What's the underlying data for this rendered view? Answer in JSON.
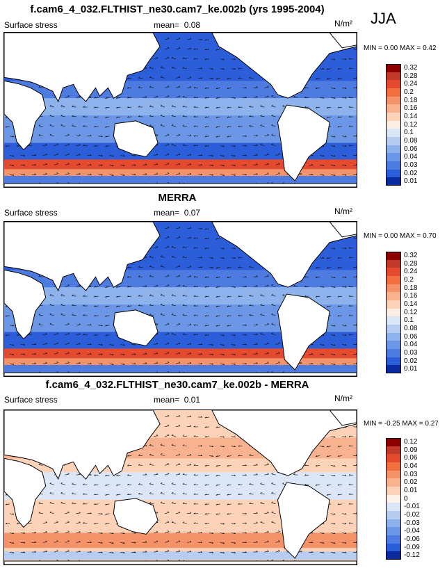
{
  "season_label": "JJA",
  "panels": [
    {
      "title": "f.cam6_4_032.FLTHIST_ne30.cam7_ke.002b (yrs 1995-2004)",
      "variable": "Surface stress",
      "mean_label": "mean=",
      "mean": "0.08",
      "unit": "N/m²",
      "min_label": "MIN =",
      "min": "0.00",
      "max_label": "MAX =",
      "max": "0.42",
      "palette": "sequential",
      "colorbar": [
        "0.32",
        "0.28",
        "0.24",
        "0.2",
        "0.18",
        "0.16",
        "0.14",
        "0.12",
        "0.1",
        "0.08",
        "0.06",
        "0.04",
        "0.03",
        "0.02",
        "0.01"
      ]
    },
    {
      "title": "MERRA",
      "variable": "Surface stress",
      "mean_label": "mean=",
      "mean": "0.07",
      "unit": "N/m²",
      "min_label": "MIN =",
      "min": "0.00",
      "max_label": "MAX =",
      "max": "0.70",
      "palette": "sequential",
      "colorbar": [
        "0.32",
        "0.28",
        "0.24",
        "0.2",
        "0.18",
        "0.16",
        "0.14",
        "0.12",
        "0.1",
        "0.08",
        "0.06",
        "0.04",
        "0.03",
        "0.02",
        "0.01"
      ]
    },
    {
      "title": "f.cam6_4_032.FLTHIST_ne30.cam7_ke.002b - MERRA",
      "variable": "Surface stress",
      "mean_label": "mean=",
      "mean": "0.01",
      "unit": "N/m²",
      "min_label": "MIN =",
      "min": "-0.25",
      "max_label": "MAX =",
      "max": "0.27",
      "palette": "diverging",
      "colorbar": [
        "0.12",
        "0.09",
        "0.06",
        "0.04",
        "0.03",
        "0.02",
        "0.01",
        "0",
        "-0.01",
        "-0.02",
        "-0.03",
        "-0.04",
        "-0.06",
        "-0.09",
        "-0.12"
      ]
    }
  ],
  "colors": {
    "sequential": [
      "#8b0000",
      "#c0392b",
      "#e34a2f",
      "#f2703f",
      "#f4936a",
      "#f8b28f",
      "#fcd3b8",
      "#fbeee2",
      "#dbe6f7",
      "#b6cdf1",
      "#8eb2ec",
      "#6c97e6",
      "#4d7be0",
      "#2d5ed9",
      "#0b2a9e"
    ],
    "diverging": [
      "#8b0000",
      "#c0392b",
      "#e34a2f",
      "#f2703f",
      "#f4936a",
      "#f8b28f",
      "#fcd3b8",
      "#fdf3ec",
      "#dbe6f7",
      "#b6cdf1",
      "#8eb2ec",
      "#6c97e6",
      "#4d7be0",
      "#2d5ed9",
      "#0b2a9e"
    ],
    "land": "#ffffff",
    "coast": "#000000",
    "arrow": "#111111"
  }
}
